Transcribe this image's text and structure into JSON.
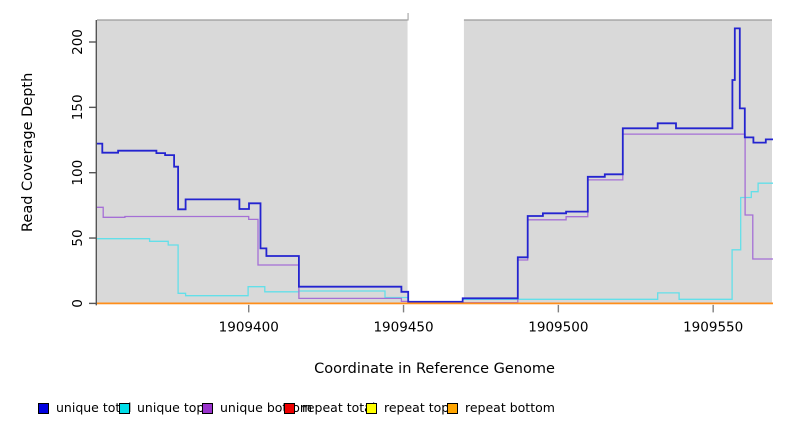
{
  "chart_data": {
    "type": "line",
    "style": "step-after",
    "title": "",
    "xlabel": "Coordinate in Reference Genome",
    "ylabel": "Read Coverage Depth",
    "x_ticks": [
      1909400,
      1909450,
      1909500,
      1909550
    ],
    "y_ticks": [
      0,
      50,
      100,
      150,
      200
    ],
    "xlim": [
      1909351,
      1909569
    ],
    "ylim": [
      0,
      215
    ],
    "grid": false,
    "legend_position": "bottom",
    "panel_background": "#d9d9d9",
    "masked_region": {
      "from": 1909451.3,
      "to": 1909469.5,
      "color": "#ffffff"
    },
    "series": [
      {
        "name": "unique total",
        "color": "#2424d0",
        "width": 1.8,
        "points": [
          [
            1909351,
            122.3
          ],
          [
            1909352.7,
            115.3
          ],
          [
            1909357.8,
            116.8
          ],
          [
            1909370.2,
            115.0
          ],
          [
            1909373.0,
            113.5
          ],
          [
            1909375.9,
            104.6
          ],
          [
            1909377.2,
            72.0
          ],
          [
            1909379.6,
            79.6
          ],
          [
            1909397.0,
            72.2
          ],
          [
            1909400.1,
            76.6
          ],
          [
            1909403.8,
            42.1
          ],
          [
            1909405.7,
            36.3
          ],
          [
            1909416.2,
            12.8
          ],
          [
            1909449.3,
            8.9
          ],
          [
            1909451.5,
            1.2
          ],
          [
            1909469.1,
            3.9
          ],
          [
            1909486.9,
            35.3
          ],
          [
            1909490.1,
            66.9
          ],
          [
            1909495.0,
            68.9
          ],
          [
            1909502.5,
            70.2
          ],
          [
            1909509.5,
            96.9
          ],
          [
            1909515.0,
            98.8
          ],
          [
            1909520.8,
            134.0
          ],
          [
            1909532.1,
            137.8
          ],
          [
            1909538.0,
            134.0
          ],
          [
            1909556.2,
            170.9
          ],
          [
            1909557.0,
            210.4
          ],
          [
            1909558.6,
            149.2
          ],
          [
            1909560.2,
            127.0
          ],
          [
            1909563.0,
            123.0
          ],
          [
            1909567.0,
            125.5
          ]
        ]
      },
      {
        "name": "unique top",
        "color": "#63dfe9",
        "width": 1.3,
        "points": [
          [
            1909351,
            49.5
          ],
          [
            1909368,
            47.5
          ],
          [
            1909374,
            44.7
          ],
          [
            1909377.2,
            7.7
          ],
          [
            1909379.6,
            5.9
          ],
          [
            1909399.8,
            12.8
          ],
          [
            1909405.2,
            8.9
          ],
          [
            1909416.2,
            9.5
          ],
          [
            1909444,
            4.5
          ],
          [
            1909451.5,
            0.8
          ],
          [
            1909469.1,
            3.1
          ],
          [
            1909532.1,
            8.0
          ],
          [
            1909539,
            3.1
          ],
          [
            1909556.1,
            41.0
          ],
          [
            1909558.9,
            81.0
          ],
          [
            1909562.3,
            85.5
          ],
          [
            1909564.5,
            92.0
          ]
        ]
      },
      {
        "name": "unique bottom",
        "color": "#a56fd6",
        "width": 1.3,
        "points": [
          [
            1909351,
            73.5
          ],
          [
            1909353,
            65.9
          ],
          [
            1909360,
            66.5
          ],
          [
            1909400,
            64.3
          ],
          [
            1909403,
            29.4
          ],
          [
            1909416.2,
            3.8
          ],
          [
            1909449.3,
            1.5
          ],
          [
            1909451.5,
            0.4
          ],
          [
            1909469.1,
            0.6
          ],
          [
            1909486.9,
            33.2
          ],
          [
            1909490.1,
            64.0
          ],
          [
            1909502.5,
            66.3
          ],
          [
            1909509.5,
            94.5
          ],
          [
            1909520.8,
            129.5
          ],
          [
            1909560.3,
            67.6
          ],
          [
            1909562.8,
            34.0
          ]
        ]
      },
      {
        "name": "repeat total",
        "color": "#e00000",
        "width": 1.2,
        "points": [
          [
            1909351,
            0
          ]
        ]
      },
      {
        "name": "repeat top",
        "color": "#ffff00",
        "width": 1.2,
        "points": [
          [
            1909351,
            0
          ]
        ]
      },
      {
        "name": "repeat bottom",
        "color": "#ff8e1a",
        "width": 1.8,
        "points": [
          [
            1909351,
            0
          ]
        ]
      }
    ]
  },
  "legend": {
    "items": [
      {
        "label": "unique total",
        "color": "#0000e0"
      },
      {
        "label": "unique top",
        "color": "#00dde8"
      },
      {
        "label": "unique bottom",
        "color": "#9933cc"
      },
      {
        "label": "repeat total",
        "color": "#ee0000"
      },
      {
        "label": "repeat top",
        "color": "#ffff00"
      },
      {
        "label": "repeat bottom",
        "color": "#ffa500"
      }
    ]
  }
}
